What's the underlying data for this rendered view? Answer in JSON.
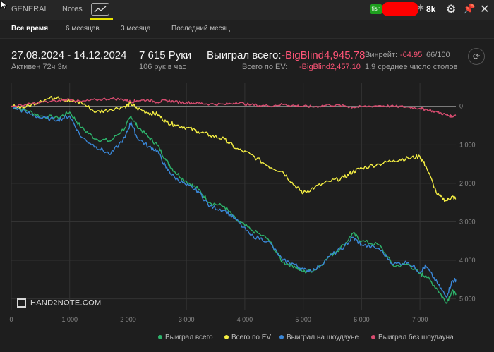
{
  "tabs": {
    "general": "GENERAL",
    "notes": "Notes"
  },
  "header_right": {
    "badge": "fish",
    "count": "8k"
  },
  "periods": [
    "Все время",
    "6 месяцев",
    "3 месяца",
    "Последний месяц"
  ],
  "stats": {
    "date_range": "27.08.2024 - 14.12.2024",
    "active": "Активен 72ч 3м",
    "hands": "7 615 Руки",
    "hands_per_hour": "106 рук в час",
    "won_label": "Выиграл всего:",
    "won_value": "-BigBlind4,945.78",
    "ev_label": "Всего по EV:",
    "ev_value": "-BigBlind2,457.10",
    "winrate_label": "Винрейт:",
    "winrate_value": "-64.95",
    "winrate_hands": "66/100",
    "tables": "1.9 среднее число столов"
  },
  "watermark": "HAND2NOTE.COM",
  "colors": {
    "green": "#2db36b",
    "yellow": "#f4ee43",
    "blue": "#3a86d6",
    "pink": "#d94c70",
    "background": "#1e1e1e"
  },
  "chart_data": {
    "type": "line",
    "x_ticks": [
      "0",
      "1 000",
      "2 000",
      "3 000",
      "4 000",
      "5 000",
      "6 000",
      "7 000"
    ],
    "y_ticks": [
      "0",
      "1 000",
      "2 000",
      "3 000",
      "4 000",
      "5 000"
    ],
    "xlim": [
      0,
      7615
    ],
    "ylim": [
      -5300,
      600
    ],
    "x": [
      0,
      250,
      500,
      800,
      1000,
      1200,
      1450,
      1700,
      1950,
      2050,
      2150,
      2350,
      2500,
      2650,
      2800,
      3000,
      3200,
      3400,
      3650,
      3850,
      4100,
      4400,
      4650,
      4850,
      5000,
      5200,
      5450,
      5700,
      5850,
      6000,
      6300,
      6550,
      6800,
      7000,
      7100,
      7300,
      7450,
      7550,
      7615
    ],
    "series": [
      {
        "name": "Выиграл всего",
        "color": "#2db36b",
        "values": [
          0,
          -100,
          -250,
          -300,
          -150,
          -550,
          -850,
          -900,
          -550,
          -250,
          -500,
          -800,
          -1000,
          -1400,
          -1700,
          -1950,
          -2150,
          -2500,
          -2600,
          -2950,
          -3200,
          -3450,
          -4050,
          -4150,
          -4300,
          -4250,
          -3900,
          -3600,
          -3300,
          -3500,
          -3600,
          -4150,
          -4100,
          -4350,
          -4400,
          -4750,
          -5100,
          -4800,
          -4900
        ]
      },
      {
        "name": "Всего по EV",
        "color": "#f4ee43",
        "values": [
          0,
          -20,
          150,
          250,
          130,
          100,
          -150,
          -80,
          0,
          70,
          -50,
          -170,
          -200,
          -400,
          -480,
          -550,
          -650,
          -750,
          -850,
          -1100,
          -1250,
          -1550,
          -1700,
          -2050,
          -2250,
          -2100,
          -1950,
          -1850,
          -1700,
          -1600,
          -1500,
          -1400,
          -1350,
          -1300,
          -1550,
          -2300,
          -2450,
          -2350,
          -2400
        ]
      },
      {
        "name": "Выиграл на шоудауне",
        "color": "#3a86d6",
        "values": [
          0,
          -150,
          -300,
          -350,
          -250,
          -800,
          -1050,
          -1250,
          -800,
          -400,
          -800,
          -1050,
          -1150,
          -1600,
          -1850,
          -2050,
          -2200,
          -2600,
          -2700,
          -2950,
          -3350,
          -3500,
          -4000,
          -4100,
          -4250,
          -4250,
          -3900,
          -3650,
          -3400,
          -3600,
          -3700,
          -4100,
          -4050,
          -4300,
          -4150,
          -4600,
          -4950,
          -4550,
          -4500
        ]
      },
      {
        "name": "Выиграл без шоудауна",
        "color": "#d94c70",
        "values": [
          0,
          40,
          100,
          140,
          180,
          120,
          170,
          200,
          170,
          120,
          150,
          160,
          110,
          150,
          120,
          100,
          80,
          60,
          50,
          100,
          40,
          10,
          50,
          20,
          0,
          -10,
          40,
          10,
          -20,
          -10,
          20,
          0,
          -20,
          -50,
          -80,
          -150,
          -220,
          -260,
          -220
        ]
      }
    ],
    "grid": true,
    "legend": "bottom"
  }
}
